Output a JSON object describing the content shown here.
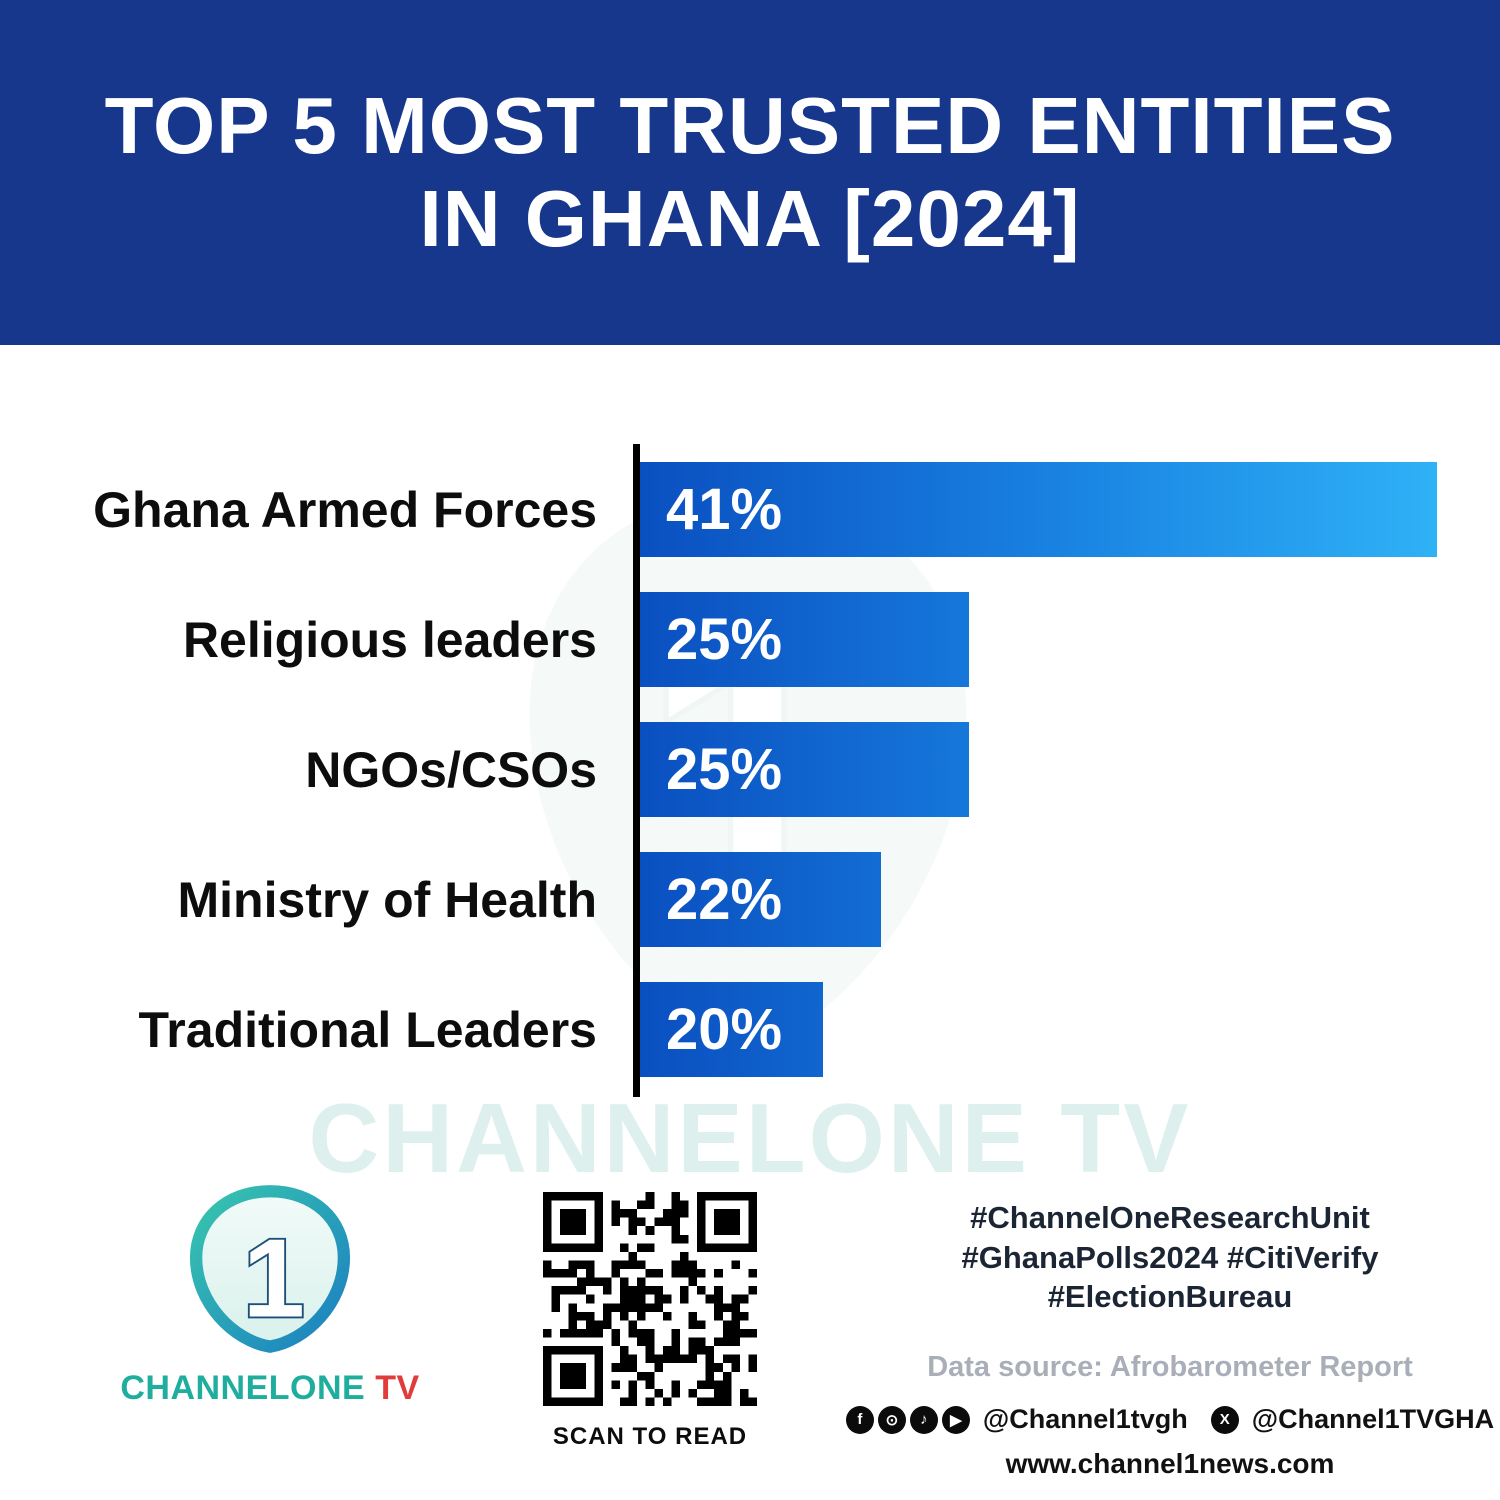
{
  "header": {
    "title_line1": "TOP 5 MOST TRUSTED ENTITIES",
    "title_line2": "IN GHANA [2024]"
  },
  "chart_data": {
    "type": "bar",
    "orientation": "horizontal",
    "title": "Top 5 Most Trusted Entities in Ghana [2024]",
    "categories": [
      "Ghana Armed Forces",
      "Religious leaders",
      "NGOs/CSOs",
      "Ministry of Health",
      "Traditional Leaders"
    ],
    "values": [
      41,
      25,
      25,
      22,
      20
    ],
    "value_labels": [
      "41%",
      "25%",
      "25%",
      "22%",
      "20%"
    ],
    "value_suffix": "%",
    "xlim": [
      0,
      41
    ],
    "grid": false,
    "legend": false,
    "display_widths_pct": [
      100,
      41.3,
      41.3,
      30.3,
      23
    ],
    "bar_gradient": [
      "#0a4fc0",
      "#2fb2f6"
    ],
    "axis_color": "#000000"
  },
  "watermark": {
    "text": "CHANNELONE TV"
  },
  "footer": {
    "brand_name": "CHANNELONE",
    "brand_tv": " TV",
    "qr_caption": "SCAN TO READ",
    "hashtags_line1": "#ChannelOneResearchUnit",
    "hashtags_line2": "#GhanaPolls2024 #CitiVerify",
    "hashtags_line3": "#ElectionBureau",
    "data_source": "Data source: Afrobarometer Report",
    "social_handle_1": "@Channel1tvgh",
    "social_handle_2": "@Channel1TVGHA",
    "website": "www.channel1news.com",
    "icons": {
      "facebook": "f",
      "instagram": "⊙",
      "tiktok": "♪",
      "youtube": "▶",
      "x": "X"
    }
  },
  "colors": {
    "header_bg": "#16378c",
    "brand_teal": "#1fae9e",
    "brand_red": "#e03c3c",
    "bar_start": "#0a4fc0",
    "bar_end": "#2fb2f6"
  }
}
